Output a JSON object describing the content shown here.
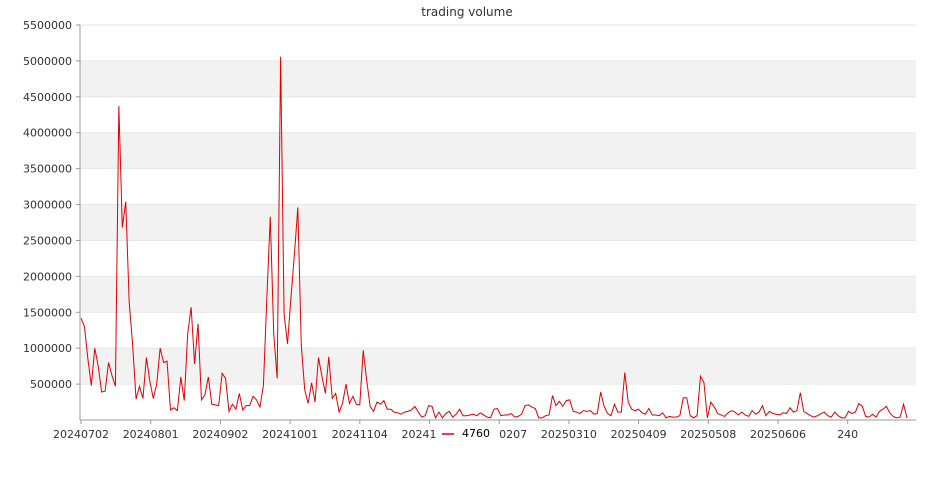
{
  "chart_data": {
    "type": "line",
    "title": "trading volume",
    "xlabel": "",
    "ylabel": "",
    "ylim": [
      0,
      5500000
    ],
    "yticks": [
      500000,
      1000000,
      1500000,
      2000000,
      2500000,
      3000000,
      3500000,
      4000000,
      4500000,
      5000000,
      5500000
    ],
    "xtick_labels": [
      "20240702",
      "20240801",
      "20240902",
      "20241001",
      "20241104",
      "20241231",
      "20250207",
      "20250310",
      "20250409",
      "20250508",
      "20250606",
      "240"
    ],
    "grid": "horizontal bands",
    "legend_position": "bottom",
    "colors": {
      "series": "#e00000",
      "band": "#f2f2f2",
      "axis": "#999999"
    },
    "series": [
      {
        "name": "4760",
        "values": [
          1420000,
          1300000,
          850000,
          480000,
          1000000,
          750000,
          390000,
          400000,
          800000,
          620000,
          470000,
          4370000,
          2680000,
          3040000,
          1640000,
          1050000,
          290000,
          470000,
          300000,
          870000,
          540000,
          300000,
          500000,
          1000000,
          800000,
          820000,
          140000,
          170000,
          130000,
          600000,
          270000,
          1200000,
          1570000,
          780000,
          1340000,
          280000,
          350000,
          600000,
          220000,
          210000,
          200000,
          650000,
          580000,
          120000,
          220000,
          150000,
          370000,
          140000,
          200000,
          200000,
          330000,
          280000,
          180000,
          480000,
          1700000,
          2830000,
          1200000,
          580000,
          5060000,
          1480000,
          1060000,
          1700000,
          2300000,
          2960000,
          1050000,
          420000,
          230000,
          520000,
          250000,
          870000,
          610000,
          370000,
          880000,
          300000,
          370000,
          110000,
          230000,
          500000,
          230000,
          330000,
          220000,
          210000,
          970000,
          560000,
          190000,
          120000,
          250000,
          220000,
          270000,
          150000,
          150000,
          110000,
          100000,
          80000,
          110000,
          120000,
          140000,
          190000,
          110000,
          40000,
          60000,
          200000,
          190000,
          30000,
          110000,
          30000,
          90000,
          120000,
          40000,
          80000,
          150000,
          60000,
          60000,
          70000,
          80000,
          60000,
          100000,
          70000,
          40000,
          30000,
          150000,
          160000,
          60000,
          70000,
          70000,
          90000,
          40000,
          50000,
          80000,
          200000,
          210000,
          180000,
          160000,
          30000,
          30000,
          60000,
          70000,
          340000,
          200000,
          260000,
          190000,
          270000,
          280000,
          120000,
          110000,
          90000,
          130000,
          120000,
          130000,
          80000,
          90000,
          390000,
          190000,
          90000,
          60000,
          220000,
          110000,
          110000,
          660000,
          250000,
          150000,
          130000,
          150000,
          100000,
          80000,
          160000,
          70000,
          70000,
          60000,
          100000,
          30000,
          50000,
          40000,
          40000,
          60000,
          310000,
          310000,
          60000,
          30000,
          60000,
          610000,
          520000,
          30000,
          250000,
          180000,
          90000,
          70000,
          50000,
          100000,
          130000,
          110000,
          70000,
          110000,
          70000,
          50000,
          130000,
          80000,
          110000,
          200000,
          60000,
          120000,
          90000,
          80000,
          70000,
          100000,
          90000,
          170000,
          110000,
          130000,
          380000,
          120000,
          90000,
          60000,
          40000,
          60000,
          90000,
          110000,
          60000,
          40000,
          110000,
          60000,
          30000,
          30000,
          120000,
          90000,
          110000,
          230000,
          190000,
          50000,
          40000,
          80000,
          40000,
          120000,
          150000,
          190000,
          100000,
          50000,
          30000,
          40000,
          220000,
          30000
        ]
      }
    ]
  }
}
